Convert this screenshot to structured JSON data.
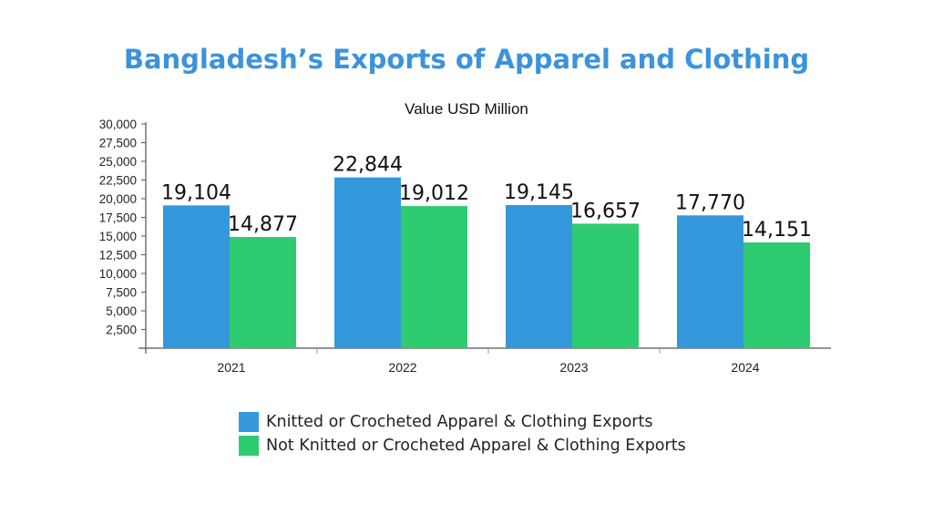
{
  "chart_data": {
    "type": "bar",
    "title": "Bangladesh’s Exports of Apparel and Clothing",
    "subtitle": "Value USD Million",
    "categories": [
      "2021",
      "2022",
      "2023",
      "2024"
    ],
    "series": [
      {
        "name": "Knitted or Crocheted Apparel & Clothing Exports",
        "values": [
          19104,
          22844,
          19145,
          17770
        ],
        "color": "#3498dc"
      },
      {
        "name": "Not Knitted or Crocheted Apparel & Clothing Exports",
        "values": [
          14877,
          19012,
          16657,
          14151
        ],
        "color": "#2ecc71"
      }
    ],
    "data_labels": [
      [
        "19,104",
        "22,844",
        "19,145",
        "17,770"
      ],
      [
        "14,877",
        "19,012",
        "16,657",
        "14,151"
      ]
    ],
    "ylim": [
      0,
      30000
    ],
    "yticks": [
      2500,
      5000,
      7500,
      10000,
      12500,
      15000,
      17500,
      20000,
      22500,
      25000,
      27500,
      30000
    ],
    "ytick_labels": [
      "2,500",
      "5,000",
      "7,500",
      "10,000",
      "12,500",
      "15,000",
      "17,500",
      "20,000",
      "22,500",
      "25,000",
      "27,500",
      "30,000"
    ],
    "grid": false,
    "legend_position": "bottom"
  }
}
